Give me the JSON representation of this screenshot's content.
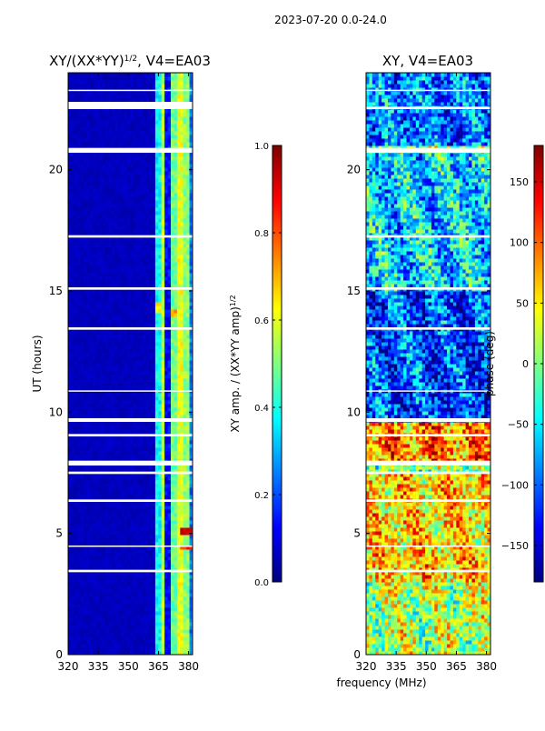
{
  "figure": {
    "suptitle": "2023-07-20 0.0-24.0",
    "shared_xlabel": "frequency (MHz)"
  },
  "colormap": [
    "#00007f",
    "#0000ff",
    "#007fff",
    "#00ffff",
    "#7fff7f",
    "#ffff00",
    "#ff7f00",
    "#ff0000",
    "#7f0000"
  ],
  "chart_data": [
    {
      "type": "heatmap",
      "title": "XY/(XX*YY)^{1/2}, V4=EA03",
      "title_main": "XY/(XX*YY)",
      "title_sup": "1/2",
      "title_tail": ", V4=EA03",
      "xlabel": "",
      "ylabel": "UT (hours)",
      "xlim": [
        320,
        382
      ],
      "ylim": [
        0,
        24
      ],
      "xticks": [
        320,
        335,
        350,
        365,
        380
      ],
      "yticks": [
        0,
        5,
        10,
        15,
        20
      ],
      "colorbar": {
        "label": "XY amp. / (XX*YY amp)^{1/2}",
        "label_main": "XY amp. / (XX*YY amp)",
        "label_sup": "1/2",
        "range": [
          0.0,
          1.0
        ],
        "ticks": [
          0.0,
          0.2,
          0.4,
          0.6,
          0.8,
          1.0
        ],
        "tick_labels": [
          "0.0",
          "0.2",
          "0.4",
          "0.6",
          "0.8",
          "1.0"
        ]
      },
      "blank_hour_ranges": [
        [
          3.4,
          3.5
        ],
        [
          4.45,
          4.5
        ],
        [
          6.3,
          6.4
        ],
        [
          7.45,
          7.55
        ],
        [
          7.8,
          8.0
        ],
        [
          9.0,
          9.1
        ],
        [
          9.6,
          9.75
        ],
        [
          10.85,
          10.9
        ],
        [
          13.4,
          13.5
        ],
        [
          15.05,
          15.15
        ],
        [
          17.2,
          17.3
        ],
        [
          20.7,
          20.9
        ],
        [
          22.5,
          22.8
        ],
        [
          23.25,
          23.3
        ]
      ],
      "value_bands": [
        {
          "name": "background",
          "x_range": [
            320,
            362
          ],
          "value": 0.08
        },
        {
          "name": "band-1",
          "x_range": [
            362,
            365
          ],
          "value": 0.38
        },
        {
          "name": "band-2",
          "x_range": [
            365,
            367
          ],
          "value": 0.55
        },
        {
          "name": "band-3",
          "x_range": [
            367,
            371
          ],
          "value": 0.12
        },
        {
          "name": "band-4",
          "x_range": [
            371,
            374
          ],
          "value": 0.48
        },
        {
          "name": "band-5",
          "x_range": [
            374,
            377
          ],
          "value": 0.6
        },
        {
          "name": "band-6",
          "x_range": [
            377,
            380
          ],
          "value": 0.52
        },
        {
          "name": "band-7",
          "x_range": [
            380,
            382
          ],
          "value": 0.25
        }
      ],
      "hotspots": [
        {
          "x_range": [
            375,
            381
          ],
          "hours": [
            4.95,
            5.15
          ],
          "value": 0.9
        },
        {
          "x_range": [
            375,
            381
          ],
          "hours": [
            4.25,
            4.4
          ],
          "value": 0.85
        },
        {
          "x_range": [
            375,
            381
          ],
          "hours": [
            3.6,
            3.75
          ],
          "value": 0.85
        },
        {
          "x_range": [
            363,
            366
          ],
          "hours": [
            14.0,
            14.5
          ],
          "value": 0.62
        },
        {
          "x_range": [
            371,
            374
          ],
          "hours": [
            13.8,
            14.2
          ],
          "value": 0.7
        }
      ]
    },
    {
      "type": "heatmap",
      "title": "XY, V4=EA03",
      "xlabel": "frequency (MHz)",
      "ylabel": "",
      "xlim": [
        320,
        382
      ],
      "ylim": [
        0,
        24
      ],
      "xticks": [
        320,
        335,
        350,
        365,
        380
      ],
      "yticks": [
        0,
        5,
        10,
        15,
        20
      ],
      "colorbar": {
        "label": "phase (deg)",
        "range": [
          -180,
          180
        ],
        "ticks": [
          -150,
          -100,
          -50,
          0,
          50,
          100,
          150
        ],
        "tick_labels": [
          "−150",
          "−100",
          "−50",
          "0",
          "50",
          "100",
          "150"
        ]
      },
      "blank_hour_ranges": [
        [
          3.4,
          3.5
        ],
        [
          4.45,
          4.5
        ],
        [
          6.3,
          6.4
        ],
        [
          7.45,
          7.55
        ],
        [
          7.8,
          8.0
        ],
        [
          9.0,
          9.1
        ],
        [
          9.6,
          9.75
        ],
        [
          10.85,
          10.9
        ],
        [
          13.4,
          13.5
        ],
        [
          15.05,
          15.15
        ],
        [
          17.2,
          17.3
        ],
        [
          20.7,
          20.9
        ],
        [
          22.5,
          22.6
        ],
        [
          23.25,
          23.3
        ]
      ],
      "phase_regions": [
        {
          "hours": [
            0,
            3
          ],
          "value_deg": 20
        },
        {
          "hours": [
            3,
            7.4
          ],
          "value_deg": 60
        },
        {
          "hours": [
            7.9,
            9.6
          ],
          "value_deg": 90
        },
        {
          "hours": [
            9.6,
            15
          ],
          "value_deg": -110
        },
        {
          "hours": [
            15,
            20.7
          ],
          "value_deg": -60
        },
        {
          "hours": [
            20.9,
            24
          ],
          "value_deg": -90
        }
      ]
    }
  ]
}
